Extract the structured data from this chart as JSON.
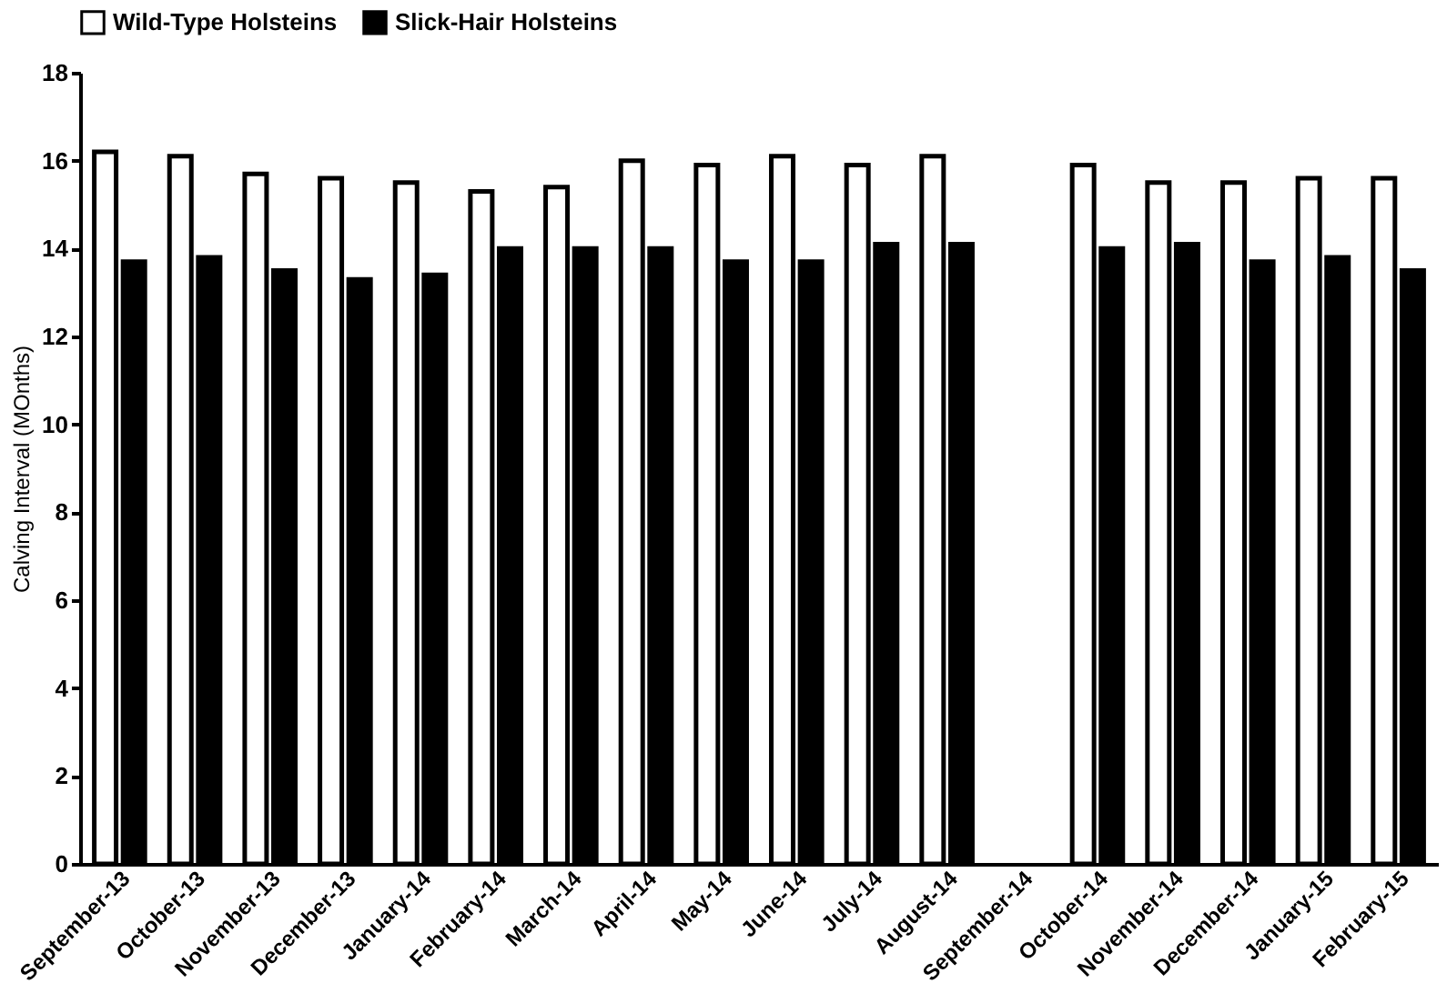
{
  "chart_data": {
    "type": "bar",
    "ylabel": "Calving Interval (MOnths)",
    "categories": [
      "September-13",
      "October-13",
      "November-13",
      "December-13",
      "January-14",
      "February-14",
      "March-14",
      "April-14",
      "May-14",
      "June-14",
      "July-14",
      "August-14",
      "September-14",
      "October-14",
      "November-14",
      "December-14",
      "January-15",
      "February-15"
    ],
    "series": [
      {
        "name": "Wild-Type Holsteins",
        "color": "#ffffff",
        "values": [
          16.2,
          16.1,
          15.7,
          15.6,
          15.5,
          15.3,
          15.4,
          16.0,
          15.9,
          16.1,
          15.9,
          16.1,
          null,
          15.9,
          15.5,
          15.5,
          15.6,
          15.6
        ]
      },
      {
        "name": "Slick-Hair Holsteins",
        "color": "#000000",
        "values": [
          13.7,
          13.8,
          13.5,
          13.3,
          13.4,
          14.0,
          14.0,
          14.0,
          13.7,
          13.7,
          14.1,
          14.1,
          null,
          14.0,
          14.1,
          13.7,
          13.8,
          13.5
        ]
      }
    ],
    "ylim": [
      0,
      18
    ],
    "yticks": [
      0,
      2,
      4,
      6,
      8,
      10,
      12,
      14,
      16,
      18
    ],
    "grid": false,
    "legend": "top"
  }
}
